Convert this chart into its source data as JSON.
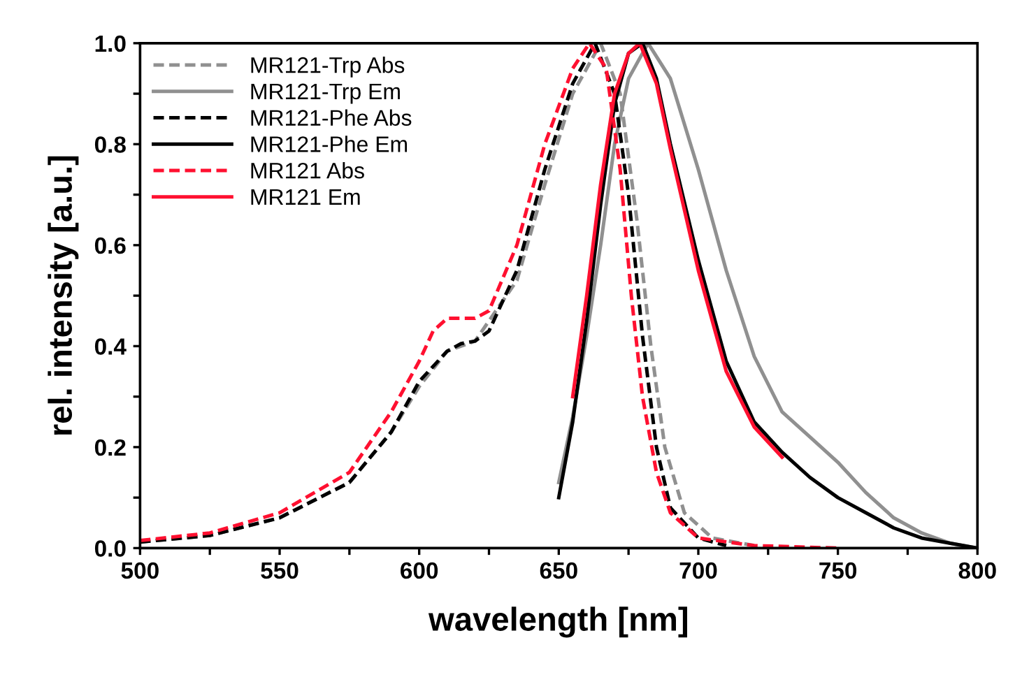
{
  "chart_data": {
    "type": "line",
    "xlabel": "wavelength [nm]",
    "ylabel": "rel. intensity [a.u.]",
    "xlim": [
      500,
      800
    ],
    "ylim": [
      0,
      1
    ],
    "xticks": [
      500,
      {
        "value": 525,
        "label": null
      },
      550,
      {
        "value": 575,
        "label": null
      },
      600,
      {
        "value": 625,
        "label": null
      },
      650,
      {
        "value": 675,
        "label": null
      },
      700,
      {
        "value": 725,
        "label": null
      },
      750,
      {
        "value": 775,
        "label": null
      },
      800
    ],
    "yticks": [
      {
        "value": 0,
        "label": "0.0"
      },
      {
        "value": 0.1,
        "label": null
      },
      0.2,
      {
        "value": 0.3,
        "label": null
      },
      0.4,
      {
        "value": 0.5,
        "label": null
      },
      0.6,
      {
        "value": 0.7,
        "label": null
      },
      0.8,
      {
        "value": 0.9,
        "label": null
      },
      {
        "value": 1,
        "label": "1.0"
      }
    ],
    "grid": false,
    "legend": "top left",
    "marker": "none",
    "series": [
      {
        "name": "MR121-Trp Abs",
        "color": "#909090",
        "line_style": "dashed",
        "x": [
          500,
          525,
          550,
          575,
          590,
          600,
          610,
          620,
          635,
          645,
          655,
          665,
          672,
          678,
          683,
          688,
          695,
          705,
          720
        ],
        "values": [
          0.012,
          0.025,
          0.06,
          0.13,
          0.23,
          0.32,
          0.39,
          0.41,
          0.53,
          0.72,
          0.9,
          1.0,
          0.9,
          0.65,
          0.4,
          0.2,
          0.07,
          0.02,
          0.005
        ]
      },
      {
        "name": "MR121-Trp Em",
        "color": "#909090",
        "line_style": "solid",
        "x": [
          650,
          655,
          660,
          665,
          670,
          675,
          682,
          690,
          700,
          710,
          720,
          730,
          740,
          750,
          760,
          770,
          780,
          790,
          800
        ],
        "values": [
          0.13,
          0.26,
          0.42,
          0.6,
          0.8,
          0.93,
          1.0,
          0.93,
          0.75,
          0.55,
          0.38,
          0.27,
          0.22,
          0.17,
          0.11,
          0.06,
          0.03,
          0.01,
          0.0
        ]
      },
      {
        "name": "MR121-Phe Abs",
        "color": "#000000",
        "line_style": "dashed",
        "x": [
          500,
          525,
          550,
          575,
          590,
          600,
          610,
          615,
          620,
          625,
          635,
          645,
          655,
          663,
          670,
          675,
          680,
          685,
          690,
          700,
          710
        ],
        "values": [
          0.012,
          0.025,
          0.06,
          0.13,
          0.23,
          0.33,
          0.39,
          0.405,
          0.41,
          0.43,
          0.55,
          0.75,
          0.92,
          1.0,
          0.9,
          0.7,
          0.42,
          0.2,
          0.08,
          0.02,
          0.005
        ]
      },
      {
        "name": "MR121-Phe Em",
        "color": "#000000",
        "line_style": "solid",
        "x": [
          650,
          655,
          660,
          665,
          670,
          675,
          680,
          685,
          690,
          700,
          710,
          720,
          730,
          740,
          750,
          760,
          770,
          780,
          790,
          800
        ],
        "values": [
          0.1,
          0.25,
          0.45,
          0.68,
          0.88,
          0.98,
          1.0,
          0.93,
          0.8,
          0.57,
          0.37,
          0.25,
          0.19,
          0.14,
          0.1,
          0.07,
          0.04,
          0.02,
          0.01,
          0.0
        ]
      },
      {
        "name": "MR121 Abs",
        "color": "#ff1030",
        "line_style": "dashed",
        "x": [
          500,
          525,
          550,
          575,
          590,
          600,
          605,
          610,
          620,
          625,
          635,
          645,
          655,
          661,
          667,
          672,
          676,
          680,
          685,
          690,
          700,
          720,
          750
        ],
        "values": [
          0.015,
          0.03,
          0.07,
          0.15,
          0.27,
          0.37,
          0.43,
          0.455,
          0.455,
          0.47,
          0.6,
          0.8,
          0.95,
          1.0,
          0.95,
          0.75,
          0.5,
          0.3,
          0.15,
          0.07,
          0.02,
          0.005,
          0.0
        ]
      },
      {
        "name": "MR121 Em",
        "color": "#ff1030",
        "line_style": "solid",
        "x": [
          655,
          660,
          665,
          670,
          675,
          679,
          685,
          690,
          700,
          710,
          720,
          730
        ],
        "values": [
          0.3,
          0.5,
          0.72,
          0.9,
          0.98,
          1.0,
          0.92,
          0.79,
          0.55,
          0.35,
          0.24,
          0.18
        ]
      }
    ]
  }
}
